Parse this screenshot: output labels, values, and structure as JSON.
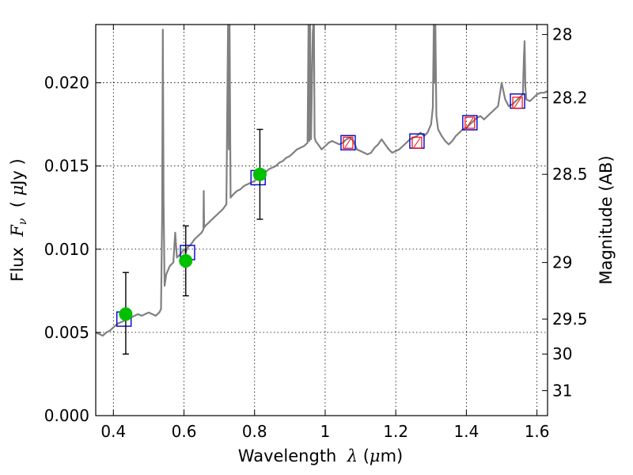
{
  "chart_data": {
    "type": "line",
    "xlabel": "Wavelength  λ (μm)",
    "ylabel": "Flux  Fν  ( μJy )",
    "y2label": "Magnitude (AB)",
    "xlim": [
      0.35,
      1.63
    ],
    "ylim": [
      0.0,
      0.0235
    ],
    "grid": true,
    "x_ticks": [
      0.4,
      0.6,
      0.8,
      1.0,
      1.2,
      1.4,
      1.6
    ],
    "x_tick_labels": [
      "0.4",
      "0.6",
      "0.8",
      "1",
      "1.2",
      "1.4",
      "1.6"
    ],
    "y_ticks": [
      0.0,
      0.005,
      0.01,
      0.015,
      0.02
    ],
    "y_tick_labels": [
      "0.000",
      "0.005",
      "0.010",
      "0.015",
      "0.020"
    ],
    "mag_ticks": [
      {
        "label": "28",
        "flux": 0.0229
      },
      {
        "label": "28.2",
        "flux": 0.0191
      },
      {
        "label": "28.5",
        "flux": 0.0145
      },
      {
        "label": "29",
        "flux": 0.0092
      },
      {
        "label": "29.5",
        "flux": 0.0058
      },
      {
        "label": "30",
        "flux": 0.0037
      },
      {
        "label": "31",
        "flux": 0.0015
      }
    ],
    "colors": {
      "spectrum": "#808080",
      "model_box": "#0000cc",
      "hst_box": "#ff0000",
      "detection": "#00c000",
      "errorbar": "#000000",
      "grid": "#000000"
    },
    "spectrum": {
      "x": [
        0.35,
        0.36,
        0.37,
        0.38,
        0.39,
        0.4,
        0.41,
        0.42,
        0.43,
        0.44,
        0.45,
        0.46,
        0.47,
        0.48,
        0.49,
        0.5,
        0.51,
        0.52,
        0.53,
        0.535,
        0.538,
        0.54,
        0.542,
        0.545,
        0.55,
        0.56,
        0.57,
        0.575,
        0.58,
        0.59,
        0.6,
        0.605,
        0.61,
        0.62,
        0.63,
        0.64,
        0.65,
        0.655,
        0.656,
        0.657,
        0.66,
        0.67,
        0.68,
        0.69,
        0.7,
        0.71,
        0.72,
        0.725,
        0.727,
        0.729,
        0.732,
        0.74,
        0.75,
        0.76,
        0.77,
        0.78,
        0.79,
        0.8,
        0.81,
        0.82,
        0.83,
        0.84,
        0.85,
        0.86,
        0.87,
        0.88,
        0.89,
        0.9,
        0.91,
        0.92,
        0.93,
        0.94,
        0.95,
        0.953,
        0.955,
        0.957,
        0.96,
        0.965,
        0.968,
        0.97,
        0.973,
        0.98,
        0.99,
        1.0,
        1.01,
        1.02,
        1.03,
        1.04,
        1.05,
        1.06,
        1.07,
        1.08,
        1.09,
        1.1,
        1.11,
        1.12,
        1.13,
        1.14,
        1.15,
        1.16,
        1.17,
        1.18,
        1.19,
        1.2,
        1.21,
        1.22,
        1.23,
        1.24,
        1.25,
        1.26,
        1.27,
        1.28,
        1.29,
        1.3,
        1.305,
        1.308,
        1.31,
        1.312,
        1.315,
        1.32,
        1.33,
        1.34,
        1.35,
        1.36,
        1.37,
        1.38,
        1.39,
        1.4,
        1.41,
        1.42,
        1.43,
        1.44,
        1.45,
        1.46,
        1.47,
        1.48,
        1.49,
        1.5,
        1.51,
        1.52,
        1.53,
        1.54,
        1.55,
        1.56,
        1.563,
        1.565,
        1.567,
        1.57,
        1.58,
        1.59,
        1.6,
        1.61,
        1.62,
        1.63
      ],
      "y": [
        0.005,
        0.0049,
        0.0048,
        0.005,
        0.0051,
        0.0053,
        0.0055,
        0.0056,
        0.0057,
        0.0058,
        0.0059,
        0.006,
        0.0061,
        0.006,
        0.0061,
        0.0062,
        0.0061,
        0.006,
        0.0062,
        0.0064,
        0.012,
        0.0232,
        0.013,
        0.0078,
        0.0085,
        0.009,
        0.0092,
        0.011,
        0.0095,
        0.0097,
        0.01,
        0.0098,
        0.0101,
        0.0103,
        0.0106,
        0.0108,
        0.011,
        0.0112,
        0.0135,
        0.0113,
        0.0114,
        0.0116,
        0.0118,
        0.012,
        0.0122,
        0.0124,
        0.0127,
        0.024,
        0.016,
        0.024,
        0.0131,
        0.0133,
        0.0135,
        0.0136,
        0.0138,
        0.0139,
        0.014,
        0.0141,
        0.0143,
        0.0145,
        0.0146,
        0.0148,
        0.0149,
        0.015,
        0.0152,
        0.0153,
        0.0155,
        0.0156,
        0.0158,
        0.016,
        0.0161,
        0.0162,
        0.0164,
        0.024,
        0.0165,
        0.024,
        0.0166,
        0.023,
        0.024,
        0.0167,
        0.0165,
        0.0163,
        0.016,
        0.0162,
        0.0164,
        0.0165,
        0.0164,
        0.0163,
        0.0164,
        0.0166,
        0.0167,
        0.0165,
        0.016,
        0.0159,
        0.0158,
        0.0157,
        0.0158,
        0.0161,
        0.0163,
        0.0166,
        0.0163,
        0.016,
        0.0158,
        0.0159,
        0.016,
        0.0162,
        0.0164,
        0.0166,
        0.0167,
        0.0168,
        0.017,
        0.0168,
        0.017,
        0.0175,
        0.0185,
        0.024,
        0.02,
        0.024,
        0.018,
        0.0172,
        0.0168,
        0.0165,
        0.0163,
        0.0165,
        0.0168,
        0.017,
        0.0172,
        0.0173,
        0.0175,
        0.0177,
        0.0179,
        0.018,
        0.0178,
        0.018,
        0.0182,
        0.0184,
        0.0186,
        0.02,
        0.019,
        0.0186,
        0.0187,
        0.0189,
        0.0191,
        0.0193,
        0.0215,
        0.0225,
        0.0198,
        0.019,
        0.0189,
        0.0191,
        0.0193,
        0.0194,
        0.0194,
        0.0195
      ]
    },
    "model_points": {
      "x": [
        0.43,
        0.61,
        0.81,
        1.065,
        1.26,
        1.41,
        1.545
      ],
      "y": [
        0.0058,
        0.0098,
        0.0143,
        0.0164,
        0.0165,
        0.0176,
        0.0189
      ]
    },
    "hst_points": {
      "x": [
        1.065,
        1.26,
        1.41,
        1.545
      ],
      "y": [
        0.0164,
        0.0164,
        0.0176,
        0.0188
      ]
    },
    "detections": {
      "x": [
        0.435,
        0.605,
        0.815
      ],
      "y": [
        0.0061,
        0.0093,
        0.0145
      ],
      "err_low": [
        0.0037,
        0.0072,
        0.0118
      ],
      "err_high": [
        0.0086,
        0.0114,
        0.0172
      ]
    }
  }
}
